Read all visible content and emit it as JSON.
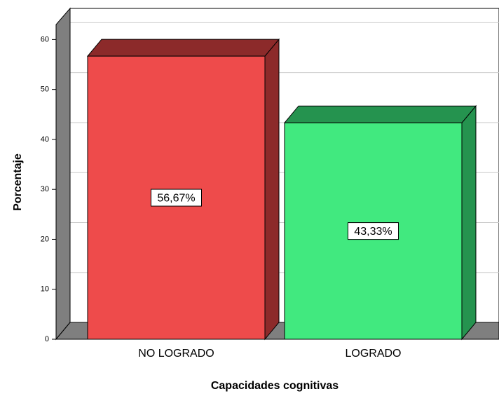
{
  "chart_data": {
    "type": "bar3d",
    "categories": [
      "NO LOGRADO",
      "LOGRADO"
    ],
    "values": [
      56.67,
      43.33
    ],
    "value_labels": [
      "56,67%",
      "43,33%"
    ],
    "colors": [
      "#ee4b4b",
      "#41e97f"
    ],
    "side_colors": [
      "#8c2a2a",
      "#25934f"
    ],
    "xlabel": "Capacidades cognitivas",
    "ylabel": "Porcentaje",
    "ylim": [
      0,
      63
    ],
    "yticks": [
      0,
      10,
      20,
      30,
      40,
      50,
      60
    ],
    "grid": true
  }
}
